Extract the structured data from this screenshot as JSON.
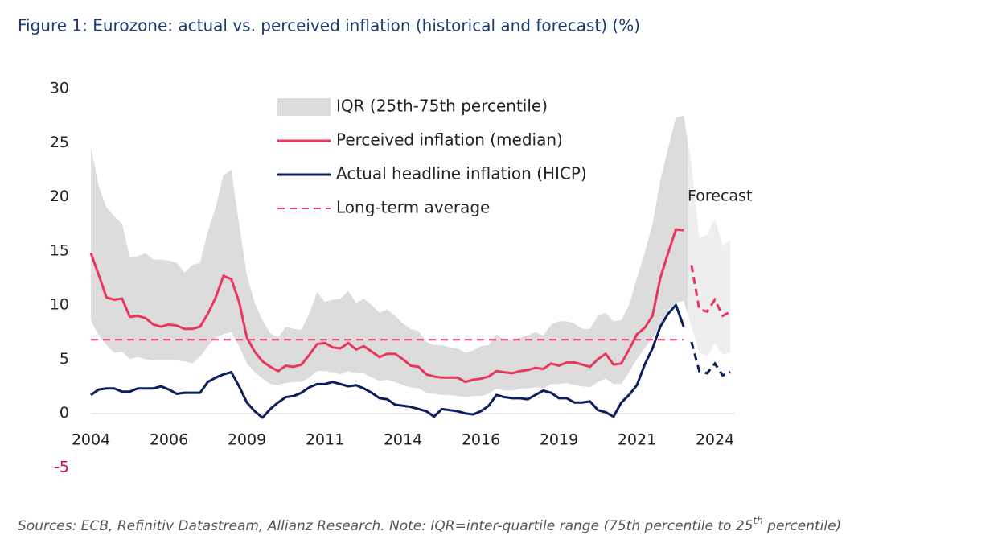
{
  "chart_data": {
    "type": "line",
    "title": "Figure 1: Eurozone: actual vs. perceived inflation (historical and forecast) (%)",
    "categories": [
      "2004",
      null,
      null,
      null,
      null,
      null,
      null,
      null,
      null,
      null,
      "2006",
      null,
      null,
      null,
      null,
      null,
      null,
      null,
      null,
      null,
      "2009",
      null,
      null,
      null,
      null,
      null,
      null,
      null,
      null,
      null,
      "2011",
      null,
      null,
      null,
      null,
      null,
      null,
      null,
      null,
      null,
      "2014",
      null,
      null,
      null,
      null,
      null,
      null,
      null,
      null,
      null,
      "2016",
      null,
      null,
      null,
      null,
      null,
      null,
      null,
      null,
      null,
      "2019",
      null,
      null,
      null,
      null,
      null,
      null,
      null,
      null,
      null,
      "2021",
      null,
      null,
      null,
      null,
      null,
      null,
      null,
      null,
      null,
      "2024",
      null,
      null
    ],
    "ylim": [
      -5,
      30
    ],
    "yticks": [
      -5,
      0,
      5,
      10,
      15,
      20,
      25,
      30
    ],
    "negative_tick_color": "#e4003a",
    "zero_line": true,
    "band": {
      "name": "IQR (25th-75th percentile)",
      "color": "#dcdcdc",
      "upper": [
        24.6,
        21.0,
        19.0,
        18.2,
        17.5,
        14.4,
        14.5,
        14.8,
        14.2,
        14.2,
        14.1,
        13.9,
        13.0,
        13.7,
        13.9,
        16.8,
        19.0,
        22.0,
        22.5,
        17.5,
        12.8,
        10.2,
        8.6,
        7.4,
        7.0,
        8.0,
        7.8,
        7.7,
        9.2,
        11.2,
        10.3,
        10.5,
        10.6,
        11.3,
        10.2,
        10.6,
        10.0,
        9.3,
        9.6,
        9.0,
        8.3,
        7.8,
        7.6,
        6.6,
        6.3,
        6.3,
        6.1,
        6.0,
        5.6,
        5.8,
        6.2,
        6.3,
        7.3,
        6.8,
        6.8,
        7.0,
        7.2,
        7.5,
        7.2,
        8.2,
        8.5,
        8.5,
        8.3,
        7.8,
        7.8,
        9.0,
        9.3,
        8.5,
        8.6,
        10.0,
        12.5,
        14.8,
        17.5,
        21.5,
        24.5,
        27.3,
        27.5,
        23.0,
        16.2,
        16.5,
        18.0,
        15.5,
        16.0
      ],
      "lower": [
        8.6,
        7.2,
        6.3,
        5.6,
        5.7,
        5.0,
        5.2,
        5.0,
        4.9,
        4.9,
        4.9,
        4.9,
        4.8,
        4.6,
        5.2,
        6.2,
        7.0,
        7.3,
        7.5,
        6.2,
        4.6,
        3.8,
        3.2,
        2.7,
        2.6,
        2.8,
        2.9,
        2.9,
        3.3,
        3.9,
        3.9,
        3.8,
        3.6,
        3.9,
        3.7,
        3.7,
        3.3,
        3.0,
        3.1,
        2.9,
        2.6,
        2.4,
        2.3,
        1.9,
        1.8,
        1.7,
        1.7,
        1.6,
        1.5,
        1.6,
        1.6,
        1.8,
        2.3,
        2.1,
        2.1,
        2.3,
        2.3,
        2.4,
        2.3,
        2.7,
        2.7,
        2.8,
        2.6,
        2.5,
        2.4,
        2.9,
        3.2,
        2.7,
        2.7,
        3.8,
        5.0,
        6.0,
        7.0,
        8.0,
        9.5,
        10.2,
        10.4,
        8.0,
        5.6,
        5.3,
        6.4,
        5.4,
        5.6
      ]
    },
    "series": [
      {
        "name": "Perceived inflation (median)",
        "color": "#e8365d",
        "values": [
          14.8,
          12.8,
          10.7,
          10.5,
          10.6,
          8.9,
          9.0,
          8.8,
          8.2,
          8.0,
          8.2,
          8.1,
          7.8,
          7.8,
          8.0,
          9.2,
          10.7,
          12.7,
          12.4,
          10.3,
          7.0,
          5.7,
          4.8,
          4.3,
          3.9,
          4.4,
          4.3,
          4.5,
          5.4,
          6.4,
          6.5,
          6.1,
          6.0,
          6.5,
          5.9,
          6.2,
          5.7,
          5.2,
          5.5,
          5.5,
          5.0,
          4.4,
          4.3,
          3.6,
          3.4,
          3.3,
          3.3,
          3.3,
          2.9,
          3.1,
          3.2,
          3.4,
          3.9,
          3.8,
          3.7,
          3.9,
          4.0,
          4.2,
          4.1,
          4.6,
          4.4,
          4.7,
          4.7,
          4.5,
          4.3,
          5.0,
          5.5,
          4.5,
          4.6,
          5.9,
          7.3,
          7.9,
          9.0,
          12.5,
          14.8,
          17.0,
          16.9,
          null,
          null,
          null,
          null,
          null,
          null
        ],
        "forecast_values": [
          null,
          null,
          null,
          null,
          null,
          null,
          null,
          null,
          null,
          null,
          null,
          null,
          null,
          null,
          null,
          null,
          null,
          null,
          null,
          null,
          null,
          null,
          null,
          null,
          null,
          null,
          null,
          null,
          null,
          null,
          null,
          null,
          null,
          null,
          null,
          null,
          null,
          null,
          null,
          null,
          null,
          null,
          null,
          null,
          null,
          null,
          null,
          null,
          null,
          null,
          null,
          null,
          null,
          null,
          null,
          null,
          null,
          null,
          null,
          null,
          null,
          null,
          null,
          null,
          null,
          null,
          null,
          null,
          null,
          null,
          null,
          null,
          null,
          null,
          null,
          null,
          null,
          13.7,
          9.6,
          9.4,
          10.5,
          9.0,
          9.4
        ]
      },
      {
        "name": "Actual headline inflation (HICP)",
        "color": "#0b1f5c",
        "values": [
          1.7,
          2.2,
          2.3,
          2.3,
          2.0,
          2.0,
          2.3,
          2.3,
          2.3,
          2.5,
          2.2,
          1.8,
          1.9,
          1.9,
          1.9,
          2.9,
          3.3,
          3.6,
          3.8,
          2.5,
          1.0,
          0.2,
          -0.4,
          0.4,
          1.0,
          1.5,
          1.6,
          1.9,
          2.4,
          2.7,
          2.7,
          2.9,
          2.7,
          2.5,
          2.6,
          2.3,
          1.9,
          1.4,
          1.3,
          0.8,
          0.7,
          0.6,
          0.4,
          0.2,
          -0.3,
          0.4,
          0.3,
          0.2,
          0.0,
          -0.1,
          0.2,
          0.7,
          1.7,
          1.5,
          1.4,
          1.4,
          1.3,
          1.7,
          2.1,
          1.9,
          1.4,
          1.4,
          1.0,
          1.0,
          1.1,
          0.3,
          0.1,
          -0.3,
          1.0,
          1.7,
          2.6,
          4.5,
          6.0,
          8.0,
          9.2,
          10.0,
          8.0,
          null,
          null,
          null,
          null,
          null,
          null
        ],
        "forecast_values": [
          null,
          null,
          null,
          null,
          null,
          null,
          null,
          null,
          null,
          null,
          null,
          null,
          null,
          null,
          null,
          null,
          null,
          null,
          null,
          null,
          null,
          null,
          null,
          null,
          null,
          null,
          null,
          null,
          null,
          null,
          null,
          null,
          null,
          null,
          null,
          null,
          null,
          null,
          null,
          null,
          null,
          null,
          null,
          null,
          null,
          null,
          null,
          null,
          null,
          null,
          null,
          null,
          null,
          null,
          null,
          null,
          null,
          null,
          null,
          null,
          null,
          null,
          null,
          null,
          null,
          null,
          null,
          null,
          null,
          null,
          null,
          null,
          null,
          null,
          null,
          null,
          null,
          6.6,
          3.9,
          3.7,
          4.6,
          3.5,
          3.8
        ]
      }
    ],
    "reference_line": {
      "name": "Long-term average",
      "color": "#e8365d",
      "value": 6.8,
      "dashed": true
    },
    "annotation": "Forecast",
    "footnote": [
      "Sources: ECB, Refinitiv Datastream, Allianz Research. Note: IQR=inter-quartile range (75th percentile to 25",
      "th",
      " percentile)"
    ]
  }
}
